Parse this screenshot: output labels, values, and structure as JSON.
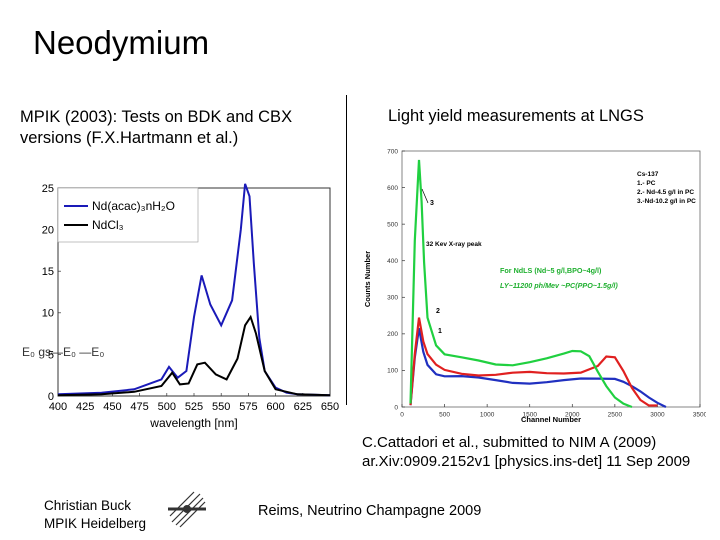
{
  "slide": {
    "title": "Neodymium",
    "left_heading": "MPIK (2003): Tests on BDK and CBX versions (F.X.Hartmann et al.)",
    "right_heading": "Light yield measurements at LNGS",
    "citation_line1": "C.Cattadori et al., submitted to NIM A (2009)",
    "citation_line2": "ar.Xiv:0909.2152v1 [physics.ins-det] 11 Sep 2009",
    "footer_author_line1": "Christian Buck",
    "footer_author_line2": "MPIK Heidelberg",
    "footer_conference": "Reims, Neutrino Champagne 2009",
    "logo_icon": "mpik-logo-icon"
  },
  "chart_data": [
    {
      "type": "line",
      "xlabel": "wavelength [nm]",
      "ylabel": "",
      "xlim": [
        400,
        650
      ],
      "ylim": [
        0,
        25
      ],
      "xticks": [
        "400",
        "425",
        "450",
        "475",
        "500",
        "525",
        "550",
        "575",
        "600",
        "625",
        "650"
      ],
      "yticks": [
        "0",
        "5",
        "10",
        "15",
        "20",
        "25"
      ],
      "annotation": "E₀ gs—E₀ —E₀",
      "series": [
        {
          "name": "Nd(acac)₃nH₂O",
          "color": "#1a1ab8",
          "x": [
            400,
            440,
            470,
            495,
            502,
            510,
            518,
            525,
            532,
            540,
            550,
            560,
            568,
            572,
            576,
            580,
            585,
            590,
            600,
            610,
            620,
            650
          ],
          "y": [
            0.2,
            0.4,
            0.8,
            2.0,
            3.5,
            2.2,
            3.0,
            9.5,
            14.5,
            11.0,
            8.5,
            11.5,
            20.0,
            25.5,
            24.0,
            16.0,
            7.0,
            3.0,
            1.0,
            0.4,
            0.2,
            0.1
          ]
        },
        {
          "name": "NdCl₃",
          "color": "#000000",
          "x": [
            400,
            440,
            470,
            495,
            505,
            512,
            520,
            528,
            535,
            545,
            555,
            565,
            572,
            577,
            582,
            590,
            600,
            620,
            650
          ],
          "y": [
            0.1,
            0.2,
            0.5,
            1.2,
            2.8,
            1.4,
            1.5,
            3.8,
            4.0,
            2.6,
            2.0,
            4.5,
            8.5,
            9.5,
            7.5,
            3.0,
            0.8,
            0.2,
            0.1
          ]
        }
      ]
    },
    {
      "type": "line",
      "xlabel": "Channel Number",
      "ylabel": "Counts Number",
      "xlim": [
        0,
        3500
      ],
      "ylim": [
        0,
        700
      ],
      "xticks": [
        "0",
        "500",
        "1000",
        "1500",
        "2000",
        "2500",
        "3000",
        "3500"
      ],
      "yticks": [
        "0",
        "100",
        "200",
        "300",
        "400",
        "500",
        "600",
        "700"
      ],
      "legend": [
        "Cs-137",
        "1.- PC",
        "2.- Nd-4.5 g/l in PC",
        "3.-Nd-10.2 g/l in PC"
      ],
      "annotations": [
        "3",
        "32 Kev X-ray peak",
        "2",
        "1",
        "For NdLS (Nd~5 g/l,BPO~4g/l)",
        "LY~11200 ph/Mev ~PC(PPO~1.5g/l)"
      ],
      "series": [
        {
          "name": "1.- PC",
          "color": "#2030c0",
          "x": [
            100,
            150,
            200,
            250,
            300,
            400,
            500,
            700,
            900,
            1100,
            1300,
            1500,
            1700,
            1900,
            2100,
            2300,
            2500,
            2600,
            2700,
            2800,
            2900,
            3000,
            3100
          ],
          "y": [
            5,
            130,
            210,
            150,
            120,
            95,
            85,
            80,
            75,
            72,
            70,
            70,
            70,
            70,
            72,
            75,
            80,
            75,
            60,
            40,
            20,
            8,
            2
          ]
        },
        {
          "name": "2.- Nd-4.5 g/l in PC",
          "color": "#e02020",
          "x": [
            100,
            150,
            200,
            250,
            300,
            400,
            500,
            700,
            900,
            1100,
            1300,
            1500,
            1700,
            1900,
            2100,
            2300,
            2400,
            2500,
            2600,
            2700,
            2800,
            2900,
            3000
          ],
          "y": [
            5,
            150,
            250,
            180,
            140,
            110,
            100,
            95,
            92,
            90,
            90,
            90,
            90,
            95,
            100,
            115,
            135,
            130,
            95,
            55,
            25,
            8,
            2
          ]
        },
        {
          "name": "3.-Nd-10.2 g/l in PC",
          "color": "#20d040",
          "x": [
            100,
            150,
            200,
            230,
            260,
            300,
            400,
            500,
            700,
            900,
            1100,
            1300,
            1500,
            1700,
            1900,
            2000,
            2100,
            2200,
            2300,
            2400,
            2500,
            2600,
            2700
          ],
          "y": [
            10,
            450,
            670,
            560,
            400,
            250,
            170,
            140,
            130,
            125,
            120,
            120,
            125,
            130,
            140,
            150,
            155,
            145,
            100,
            55,
            20,
            5,
            1
          ]
        }
      ]
    }
  ]
}
